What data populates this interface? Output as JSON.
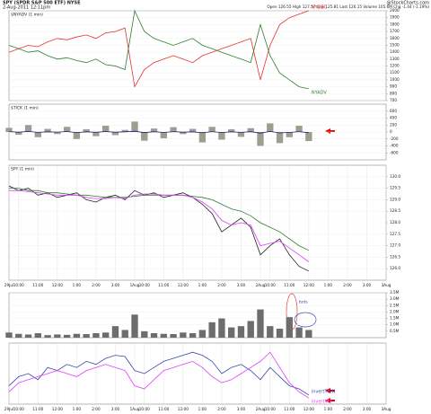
{
  "header": {
    "title": "SPY (SPDR S&P 500 ETF) NYSE",
    "date": "2-Aug-2011 12:11pm",
    "source": "@StockCharts.com",
    "quote": "Open 126.55 High 127.57 Low 125.81 Last 126.15 Volume 105.6M Chg -1.44 (-1.19%)"
  },
  "chart_data": [
    {
      "type": "line",
      "title": "$NYADV (1 min)",
      "ylim": [
        700,
        2000
      ],
      "yticks": [
        700,
        800,
        900,
        1000,
        1100,
        1200,
        1300,
        1400,
        1500,
        1600,
        1700,
        1800,
        1900,
        2000
      ],
      "series": [
        {
          "name": "NYDEC",
          "color": "#e8312f",
          "values": [
            1400,
            1450,
            1500,
            1480,
            1550,
            1600,
            1580,
            1620,
            1650,
            1600,
            1680,
            1700,
            1750,
            900,
            1150,
            1250,
            1300,
            1350,
            1300,
            1250,
            1350,
            1400,
            1450,
            1500,
            1550,
            1600,
            1000,
            1500,
            1800,
            1900,
            1950,
            2000,
            null,
            null,
            null,
            null,
            null,
            null,
            null,
            null
          ]
        },
        {
          "name": "NYADV",
          "color": "#2e7d32",
          "values": [
            1500,
            1450,
            1400,
            1420,
            1350,
            1300,
            1320,
            1280,
            1250,
            1300,
            1220,
            1200,
            1150,
            2000,
            1700,
            1600,
            1550,
            1500,
            1550,
            1600,
            1500,
            1450,
            1400,
            1350,
            1300,
            1250,
            1800,
            1350,
            1100,
            1000,
            900,
            870,
            null,
            null,
            null,
            null,
            null,
            null,
            null,
            null
          ]
        }
      ]
    },
    {
      "type": "tick",
      "title": "$TICK (1 min)",
      "ylim": [
        -800,
        800
      ],
      "yticks": [
        -600,
        -400,
        -200,
        0,
        200,
        400,
        600
      ],
      "series": [
        {
          "color": "#9e9e8e",
          "values": [
            120,
            -80,
            200,
            -150,
            90,
            -60,
            150,
            -200,
            80,
            -120,
            180,
            -90,
            60,
            300,
            -250,
            100,
            -180,
            140,
            -60,
            90,
            -300,
            150,
            -220,
            80,
            -140,
            110,
            -400,
            250,
            -320,
            -150,
            180,
            -260,
            null,
            null,
            null,
            null,
            null,
            null,
            null,
            null
          ]
        },
        {
          "color": "#1a237e",
          "values": [
            10,
            -5,
            15,
            -10,
            5,
            -3,
            12,
            -15,
            6,
            -8,
            14,
            -6,
            4,
            20,
            -18,
            8,
            -12,
            10,
            -4,
            6,
            -22,
            10,
            -16,
            6,
            -10,
            8,
            -30,
            15,
            -25,
            -12,
            10,
            -20,
            null,
            null,
            null,
            null,
            null,
            null,
            null,
            null
          ]
        }
      ]
    },
    {
      "type": "line",
      "title": "SPY (1 min)",
      "ylim": [
        125.5,
        130.5
      ],
      "yticks": [
        {
          "value": 126,
          "label": "126.0"
        },
        126.5,
        {
          "value": 127,
          "label": "127.0"
        },
        127.5,
        {
          "value": 128,
          "label": "128.0"
        },
        128.5,
        {
          "value": 129,
          "label": "129.0"
        },
        129.5,
        {
          "value": 130,
          "label": "130.0"
        }
      ],
      "categories": [
        "29Jul",
        "10:00",
        null,
        "11:00",
        null,
        "12:00",
        null,
        "1:00",
        null,
        "2:00",
        null,
        "3:00",
        null,
        "1Aug",
        "10:00",
        null,
        "11:00",
        null,
        "12:00",
        null,
        "1:00",
        null,
        "2:00",
        null,
        "3:00",
        null,
        "2Aug",
        "10:00",
        null,
        "11:00",
        null,
        "12:00",
        null,
        "1:00",
        null,
        "2:00",
        null,
        "3:00",
        null,
        "3Aug"
      ],
      "series": [
        {
          "color": "#222222",
          "values": [
            129.6,
            129.4,
            129.5,
            129.2,
            129.3,
            129.1,
            129.2,
            129.3,
            129.0,
            128.9,
            129.1,
            129.2,
            129.0,
            129.4,
            129.2,
            129.3,
            129.1,
            129.2,
            129.3,
            129.1,
            128.8,
            128.4,
            127.6,
            127.9,
            128.2,
            127.8,
            126.6,
            127.0,
            127.3,
            126.6,
            126.1,
            125.9,
            null,
            null,
            null,
            null,
            null,
            null,
            null,
            null
          ]
        },
        {
          "color": "#2e7d32",
          "values": [
            129.5,
            129.5,
            129.4,
            129.4,
            129.3,
            129.3,
            129.25,
            129.2,
            129.2,
            129.15,
            129.1,
            129.1,
            129.1,
            129.15,
            129.2,
            129.2,
            129.2,
            129.2,
            129.2,
            129.15,
            129.1,
            129.0,
            128.8,
            128.6,
            128.5,
            128.3,
            128.0,
            127.8,
            127.6,
            127.3,
            127.0,
            126.8,
            null,
            null,
            null,
            null,
            null,
            null,
            null,
            null
          ]
        },
        {
          "color": "#e040fb",
          "values": [
            129.4,
            129.4,
            129.35,
            129.3,
            129.25,
            129.2,
            129.2,
            129.2,
            129.1,
            129.05,
            129.05,
            129.1,
            129.05,
            129.2,
            129.25,
            129.25,
            129.2,
            129.2,
            129.2,
            129.1,
            128.9,
            128.6,
            128.1,
            127.9,
            128.0,
            127.9,
            127.0,
            127.1,
            127.2,
            126.9,
            126.6,
            126.3,
            null,
            null,
            null,
            null,
            null,
            null,
            null,
            null
          ]
        }
      ]
    },
    {
      "type": "bar",
      "annotation": "bots",
      "ylim": [
        0,
        3500000
      ],
      "yticks": [
        {
          "value": 500000,
          "label": "0.5M"
        },
        {
          "value": 1000000,
          "label": "1.0M"
        },
        {
          "value": 1500000,
          "label": "1.5M"
        },
        {
          "value": 2000000,
          "label": "2.0M"
        },
        {
          "value": 2500000,
          "label": "2.5M"
        },
        {
          "value": 3000000,
          "label": "3.0M"
        },
        {
          "value": 3500000,
          "label": "3.5M"
        }
      ],
      "series": [
        {
          "color": "#6d6d6d",
          "values": [
            400000,
            300000,
            250000,
            350000,
            200000,
            250000,
            220000,
            300000,
            280000,
            350000,
            400000,
            900000,
            600000,
            1800000,
            500000,
            350000,
            300000,
            280000,
            400000,
            350000,
            600000,
            1200000,
            1500000,
            800000,
            900000,
            1300000,
            2200000,
            900000,
            700000,
            1600000,
            800000,
            600000,
            null,
            null,
            null,
            null,
            null,
            null,
            null,
            null
          ]
        }
      ]
    },
    {
      "type": "line",
      "ylim": [
        0,
        1
      ],
      "categories": [
        "29Jul",
        "10:00",
        null,
        "11:00",
        null,
        "12:00",
        null,
        "1:00",
        null,
        "2:00",
        null,
        "3:00",
        null,
        "1Aug",
        "10:00",
        null,
        "11:00",
        null,
        "12:00",
        null,
        "1:00",
        null,
        "2:00",
        null,
        "3:00",
        null,
        "2Aug",
        "10:00",
        null,
        "11:00",
        null,
        "12:00",
        null,
        "1:00",
        null,
        "2:00",
        null,
        "3:00",
        null,
        "3Aug"
      ],
      "series": [
        {
          "name": "invertTRIN",
          "color": "#3949ab",
          "values": [
            0.3,
            0.45,
            0.5,
            0.4,
            0.6,
            0.55,
            0.65,
            0.6,
            0.7,
            0.65,
            0.75,
            0.8,
            0.78,
            0.55,
            0.5,
            0.6,
            0.7,
            0.75,
            0.8,
            0.85,
            0.8,
            0.7,
            0.5,
            0.6,
            0.65,
            0.55,
            0.4,
            0.6,
            0.45,
            0.3,
            0.25,
            0.15,
            null,
            null,
            null,
            null,
            null,
            null,
            null,
            null
          ]
        },
        {
          "name": "invertVIX",
          "color": "#e040fb",
          "values": [
            0.2,
            0.35,
            0.4,
            0.45,
            0.5,
            0.55,
            0.5,
            0.45,
            0.55,
            0.6,
            0.65,
            0.6,
            0.55,
            0.3,
            0.25,
            0.4,
            0.55,
            0.6,
            0.65,
            0.7,
            0.6,
            0.45,
            0.35,
            0.4,
            0.5,
            0.6,
            0.7,
            0.85,
            0.6,
            0.35,
            0.2,
            0.1,
            null,
            null,
            null,
            null,
            null,
            null,
            null,
            null
          ]
        }
      ]
    }
  ]
}
